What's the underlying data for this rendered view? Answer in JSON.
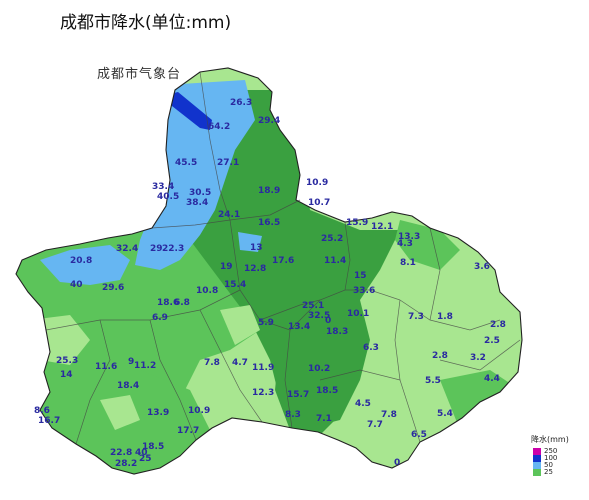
{
  "title": "成都市降水(单位:mm)",
  "agency": "成都市气象台",
  "colors": {
    "light_rain": "#a8e690",
    "moderate_rain": "#5cc45a",
    "heavy_rain": "#3aa040",
    "rainstorm": "#66b6f2",
    "heavy_rainstorm": "#1133cc",
    "extreme": "#cc00aa",
    "boundary": "#333333"
  },
  "legend": {
    "title": "降水(mm)",
    "items": [
      {
        "value": "250",
        "color": "#cc00aa"
      },
      {
        "value": "100",
        "color": "#1133cc"
      },
      {
        "value": "50",
        "color": "#66b6f2"
      },
      {
        "value": "25",
        "color": "#5cc45a"
      }
    ]
  },
  "stations": [
    {
      "value": "26.3"
    },
    {
      "value": "29.4"
    },
    {
      "value": "64.2"
    },
    {
      "value": "45.5"
    },
    {
      "value": "27.1"
    },
    {
      "value": "33.4"
    },
    {
      "value": "40.5"
    },
    {
      "value": "30.5"
    },
    {
      "value": "38.4"
    },
    {
      "value": "18.9"
    },
    {
      "value": "10.9"
    },
    {
      "value": "10.7"
    },
    {
      "value": "24.1"
    },
    {
      "value": "16.5"
    },
    {
      "value": "15.9"
    },
    {
      "value": "12.1"
    },
    {
      "value": "13.3"
    },
    {
      "value": "4.3"
    },
    {
      "value": "25.2"
    },
    {
      "value": "32.4"
    },
    {
      "value": "29"
    },
    {
      "value": "22.3"
    },
    {
      "value": "13"
    },
    {
      "value": "20.8"
    },
    {
      "value": "17.6"
    },
    {
      "value": "11.4"
    },
    {
      "value": "8.1"
    },
    {
      "value": "3.6"
    },
    {
      "value": "19"
    },
    {
      "value": "12.8"
    },
    {
      "value": "40"
    },
    {
      "value": "29.6"
    },
    {
      "value": "15.4"
    },
    {
      "value": "10.8"
    },
    {
      "value": "15"
    },
    {
      "value": "33.6"
    },
    {
      "value": "18.6"
    },
    {
      "value": "6.8"
    },
    {
      "value": "25.1"
    },
    {
      "value": "32.5"
    },
    {
      "value": "10.1"
    },
    {
      "value": "7.3"
    },
    {
      "value": "1.8"
    },
    {
      "value": "6.9"
    },
    {
      "value": "5.9"
    },
    {
      "value": "13.4"
    },
    {
      "value": "0"
    },
    {
      "value": "18.3"
    },
    {
      "value": "2.8"
    },
    {
      "value": "2.5"
    },
    {
      "value": "6.3"
    },
    {
      "value": "2.8"
    },
    {
      "value": "3.2"
    },
    {
      "value": "25.3"
    },
    {
      "value": "11.6"
    },
    {
      "value": "9"
    },
    {
      "value": "11.2"
    },
    {
      "value": "7.8"
    },
    {
      "value": "4.7"
    },
    {
      "value": "11.9"
    },
    {
      "value": "10.2"
    },
    {
      "value": "14"
    },
    {
      "value": "18.4"
    },
    {
      "value": "5.5"
    },
    {
      "value": "4.4"
    },
    {
      "value": "12.3"
    },
    {
      "value": "15.7"
    },
    {
      "value": "18.5"
    },
    {
      "value": "8.6"
    },
    {
      "value": "16.7"
    },
    {
      "value": "13.9"
    },
    {
      "value": "10.9"
    },
    {
      "value": "8.3"
    },
    {
      "value": "7.1"
    },
    {
      "value": "4.5"
    },
    {
      "value": "7.8"
    },
    {
      "value": "5.4"
    },
    {
      "value": "7.7"
    },
    {
      "value": "17.7"
    },
    {
      "value": "6.5"
    },
    {
      "value": "18.5"
    },
    {
      "value": "22.8"
    },
    {
      "value": "40"
    },
    {
      "value": "28.2"
    },
    {
      "value": "25"
    },
    {
      "value": "0"
    }
  ]
}
